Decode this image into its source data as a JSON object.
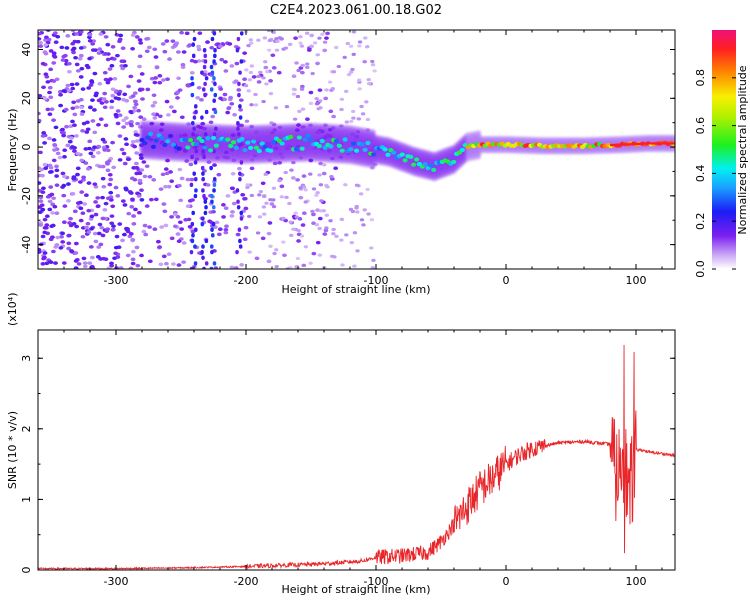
{
  "title": "C2E4.2023.061.00.18.G02",
  "colors": {
    "snr_line": "#e8262a",
    "axis": "#000000",
    "background": "#ffffff"
  },
  "chart_data": [
    {
      "type": "heatmap",
      "title": "C2E4.2023.061.00.18.G02",
      "xlabel": "Height of straight line (km)",
      "ylabel": "Frequency (Hz)",
      "xlim": [
        -360,
        130
      ],
      "ylim": [
        -50,
        48
      ],
      "xticks": [
        -300,
        -200,
        -100,
        0,
        100
      ],
      "yticks": [
        -40,
        -20,
        0,
        20,
        40
      ],
      "colormap": "rainbow",
      "colorbar": {
        "label": "Normalized spectral amplitude",
        "range": [
          0,
          1
        ],
        "ticks": [
          0.0,
          0.2,
          0.4,
          0.6,
          0.8
        ]
      },
      "ridge": {
        "x": [
          -360,
          -280,
          -250,
          -200,
          -150,
          -120,
          -90,
          -70,
          -55,
          -40,
          -30,
          -20,
          0,
          30,
          60,
          90,
          110,
          130
        ],
        "y": [
          3,
          3,
          2,
          1,
          2,
          1,
          -2,
          -6,
          -8,
          -5,
          0,
          1,
          1,
          0.5,
          0.5,
          1,
          1.5,
          1.5
        ]
      }
    },
    {
      "type": "line",
      "xlabel": "Height of straight line (km)",
      "ylabel": "SNR (10 * v/v)",
      "yscale_label": "(x10⁴)",
      "xlim": [
        -360,
        130
      ],
      "ylim": [
        0,
        3.4
      ],
      "xticks": [
        -300,
        -200,
        -100,
        0,
        100
      ],
      "yticks": [
        0,
        1,
        2,
        3
      ],
      "grid": false,
      "series": [
        {
          "x": [
            -360,
            -300,
            -250,
            -200,
            -150,
            -130,
            -110,
            -100,
            -80,
            -60,
            -50,
            -40,
            -30,
            -20,
            -10,
            0,
            10,
            20,
            40,
            60,
            80,
            85,
            90,
            95,
            100,
            105,
            110,
            120,
            130
          ],
          "y": [
            0.02,
            0.02,
            0.03,
            0.05,
            0.08,
            0.1,
            0.13,
            0.18,
            0.2,
            0.25,
            0.4,
            0.65,
            0.9,
            1.15,
            1.3,
            1.5,
            1.63,
            1.72,
            1.8,
            1.82,
            1.78,
            1.3,
            1.7,
            1.0,
            1.7,
            1.7,
            1.67,
            1.65,
            1.62
          ]
        }
      ]
    }
  ]
}
